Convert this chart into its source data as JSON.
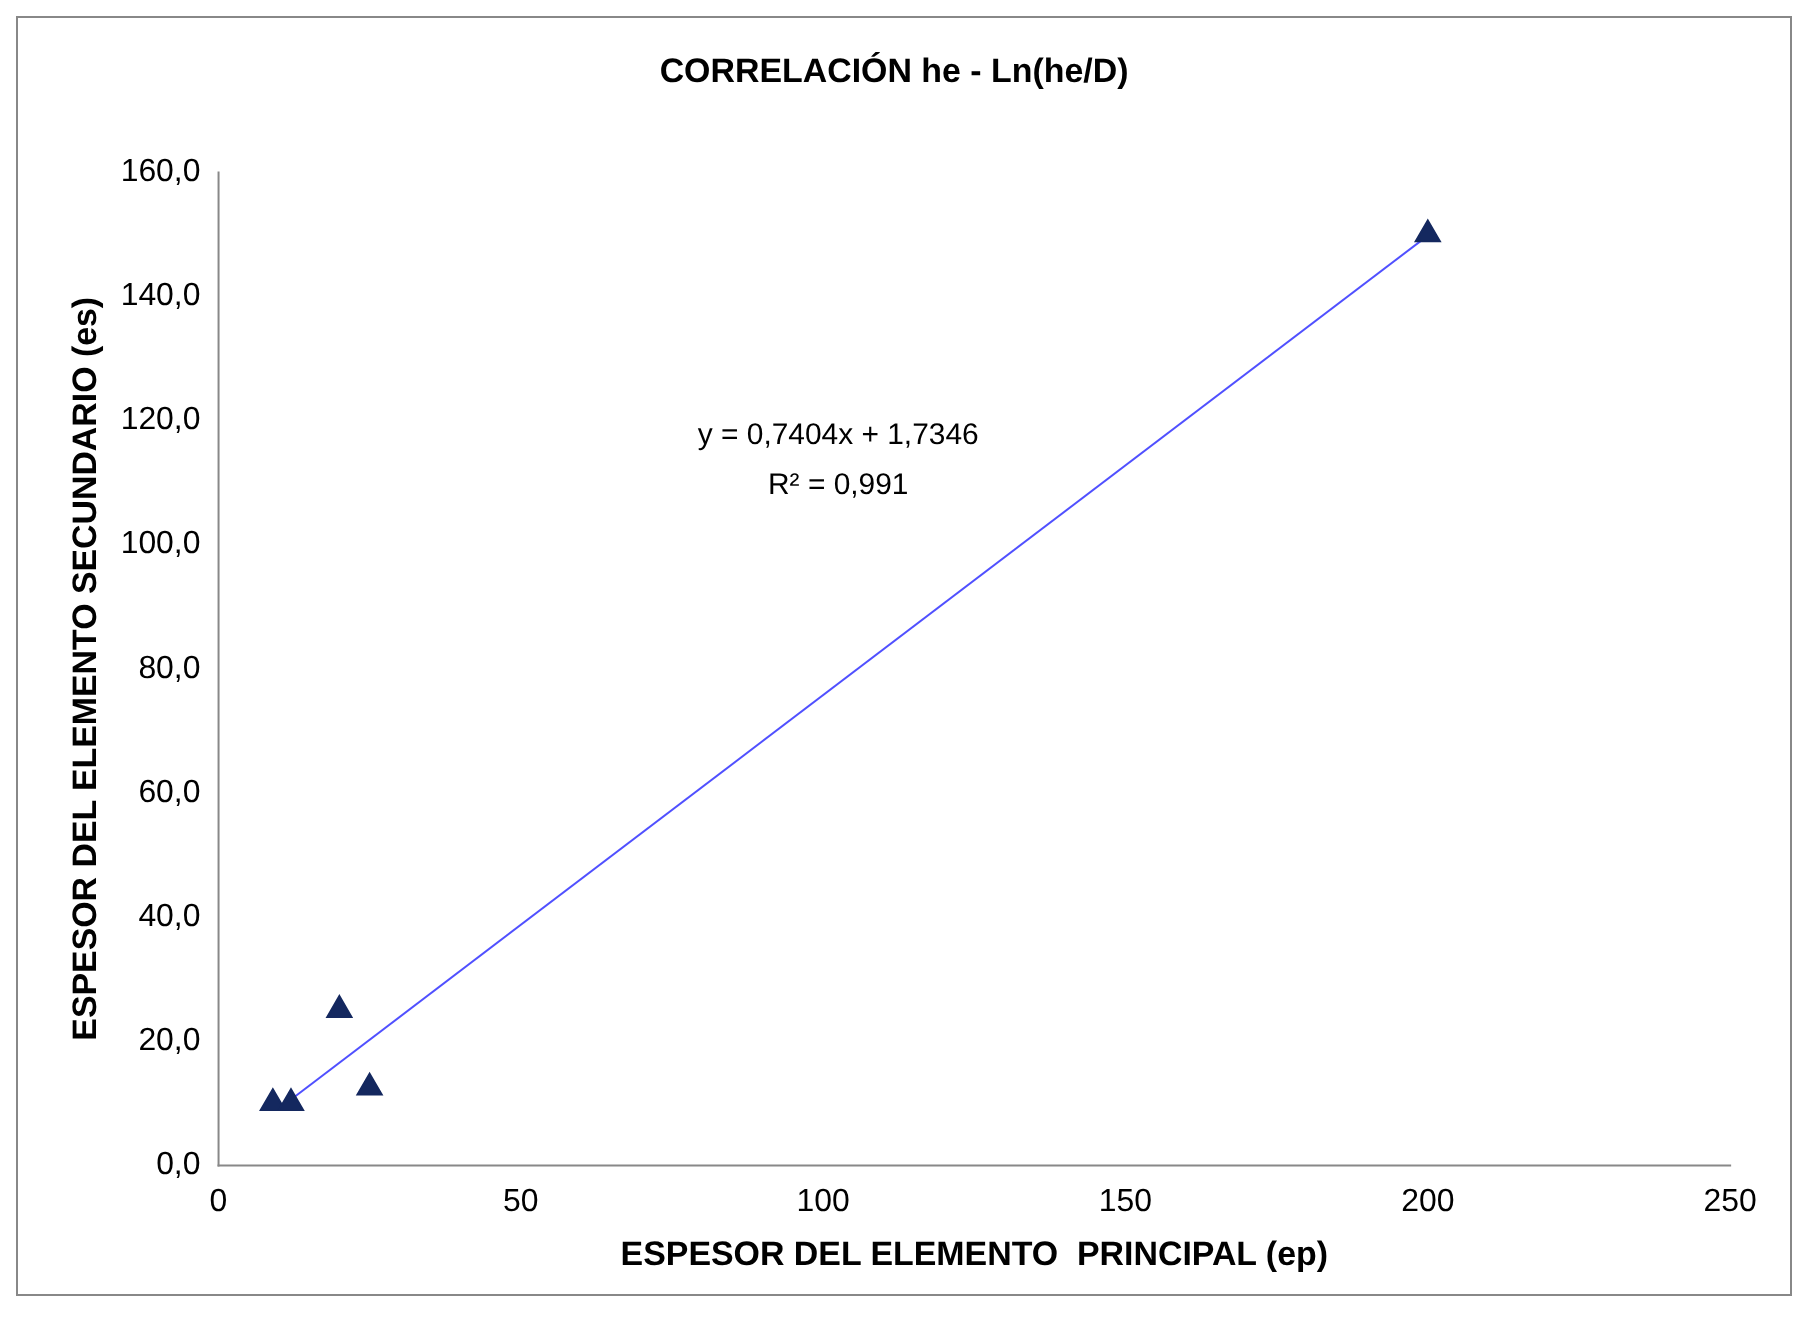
{
  "chart_data": {
    "type": "scatter",
    "title": "CORRELACIÓN he - Ln(he/D)",
    "xlabel": "ESPESOR DEL ELEMENTO  PRINCIPAL (ep)",
    "ylabel": "ESPESOR DEL ELEMENTO SECUNDARIO (es)",
    "series": [
      {
        "type": "scatter",
        "color": "#14285f",
        "x": [
          9,
          12,
          20,
          25,
          200
        ],
        "values": [
          10,
          10,
          25,
          12.5,
          150
        ],
        "marker": "triangle"
      },
      {
        "type": "line",
        "color": "#5050ff",
        "x": [
          10,
          200
        ],
        "values": [
          9.1,
          149.8
        ],
        "marker": "none",
        "line_style": "solid"
      }
    ],
    "annotations": [
      "y = 0,7404x + 1,7346",
      "R² = 0,991"
    ],
    "xlim": [
      0,
      250
    ],
    "xticks": [
      0,
      50,
      100,
      150,
      200,
      250
    ],
    "ylim": [
      0,
      160
    ],
    "yticks": [
      {
        "value": 0,
        "label": "0,0"
      },
      {
        "value": 20,
        "label": "20,0"
      },
      {
        "value": 40,
        "label": "40,0"
      },
      {
        "value": 60,
        "label": "60,0"
      },
      {
        "value": 80,
        "label": "80,0"
      },
      {
        "value": 100,
        "label": "100,0"
      },
      {
        "value": 120,
        "label": "120,0"
      },
      {
        "value": 140,
        "label": "140,0"
      },
      {
        "value": 160,
        "label": "160,0"
      }
    ],
    "grid": false,
    "legend": false
  }
}
